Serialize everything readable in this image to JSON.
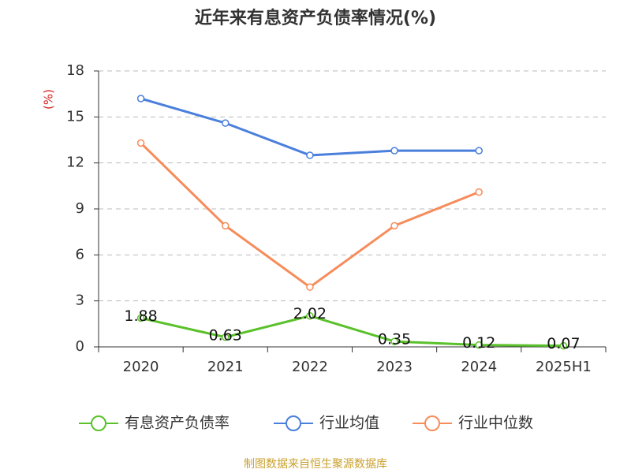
{
  "chart_data": {
    "type": "line",
    "title": "近年来有息资产负债率情况(%)",
    "y_label": "(%)",
    "categories": [
      "2020",
      "2021",
      "2022",
      "2023",
      "2024",
      "2025H1"
    ],
    "series": [
      {
        "name": "有息资产负债率",
        "color": "#5ac12a",
        "values": [
          1.88,
          0.63,
          2.02,
          0.35,
          0.12,
          0.07
        ],
        "show_labels": true
      },
      {
        "name": "行业均值",
        "color": "#4a7fdc",
        "values": [
          16.2,
          14.6,
          12.5,
          12.8,
          12.8,
          null
        ]
      },
      {
        "name": "行业中位数",
        "color": "#f78c5a",
        "values": [
          13.3,
          7.9,
          3.9,
          7.9,
          10.1,
          null
        ]
      }
    ],
    "ylim": [
      0,
      18
    ],
    "yticks": [
      0,
      3,
      6,
      9,
      12,
      15,
      18
    ],
    "grid": true,
    "source": "制图数据来自恒生聚源数据库"
  }
}
